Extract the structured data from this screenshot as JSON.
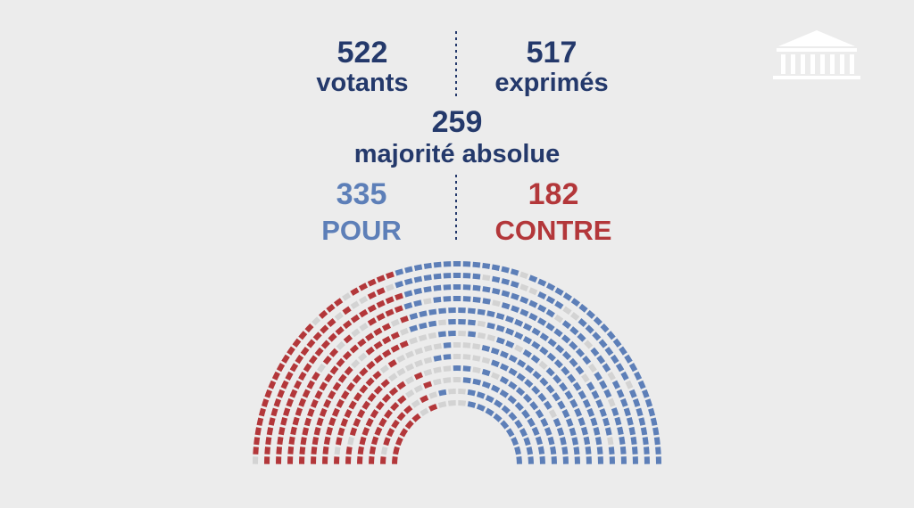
{
  "votants": {
    "number": 522,
    "label": "votants"
  },
  "exprimes": {
    "number": 517,
    "label": "exprimés"
  },
  "majorite": {
    "number": 259,
    "label": "majorité absolue"
  },
  "pour": {
    "number": 335,
    "label": "POUR"
  },
  "contre": {
    "number": 182,
    "label": "CONTRE"
  }
}
